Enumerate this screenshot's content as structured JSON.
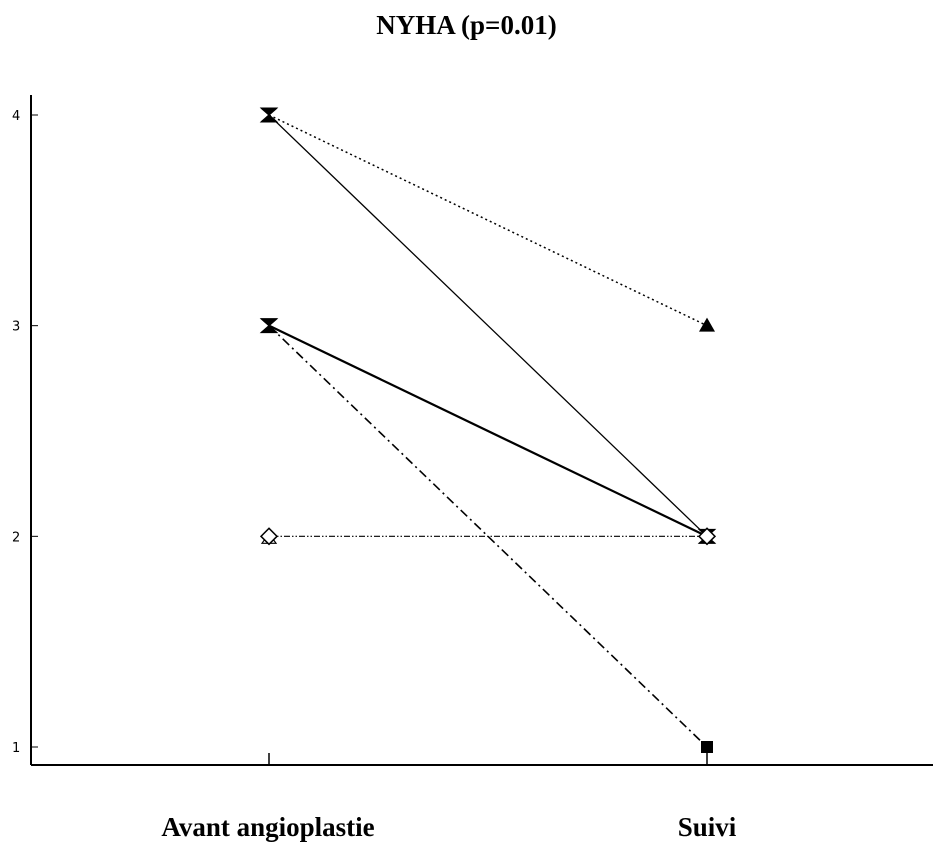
{
  "chart_data": {
    "type": "line",
    "title": "NYHA (p=0.01)",
    "categories": [
      "Avant angioplastie",
      "Suivi"
    ],
    "y_ticks": [
      "1",
      "2",
      "3",
      "4"
    ],
    "ylim": [
      1,
      4
    ],
    "series": [
      {
        "values": [
          4,
          3
        ],
        "line_style": "dotted",
        "marker_end": "filled-triangle"
      },
      {
        "values": [
          4,
          2
        ],
        "line_style": "solid-thin",
        "marker_end": "hourglass"
      },
      {
        "values": [
          3,
          2
        ],
        "line_style": "solid-thick",
        "marker_end": "hourglass"
      },
      {
        "values": [
          3,
          1
        ],
        "line_style": "dash-dot",
        "marker_end": "filled-square"
      },
      {
        "values": [
          2,
          2
        ],
        "line_style": "dash-dot-dot",
        "marker_end": "open-diamond"
      }
    ],
    "start_markers": [
      {
        "value": 4,
        "marker": "hourglass"
      },
      {
        "value": 3,
        "marker": "hourglass"
      },
      {
        "value": 2,
        "marker": "open-diamond"
      }
    ],
    "grid": false,
    "legend": "none"
  }
}
